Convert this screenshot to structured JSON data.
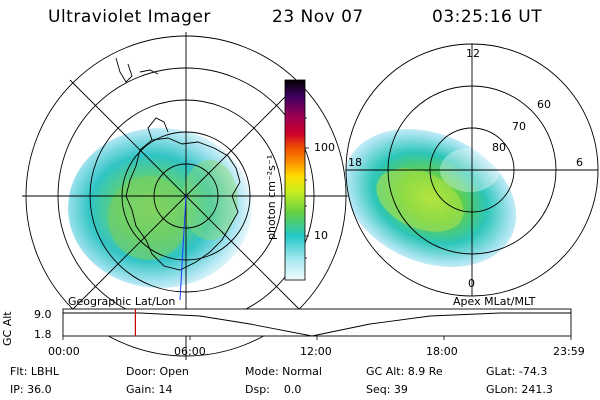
{
  "header": {
    "instrument": "Ultraviolet Imager",
    "date": "23 Nov 07",
    "time": "03:25:16 UT"
  },
  "left_map": {
    "label": "Geographic Lat/Lon"
  },
  "right_map": {
    "label": "Apex MLat/MLT",
    "mlt_labels": [
      "12",
      "18",
      "6",
      "0"
    ],
    "lat_labels": [
      "60",
      "70",
      "80"
    ]
  },
  "colorbar": {
    "unit_label": "photon cm⁻²s⁻¹",
    "ticks": [
      "100",
      "10"
    ],
    "colors": [
      "#000000",
      "#3c0060",
      "#9a0055",
      "#d0002a",
      "#f05000",
      "#ff9900",
      "#ffdd00",
      "#c8ee20",
      "#66d040",
      "#22c8c8",
      "#a8e8f0",
      "#e8f8fc"
    ]
  },
  "altitude_plot": {
    "ylabel": "GC Alt",
    "yticks": [
      "9.0",
      "1.8"
    ],
    "xticks": [
      "00:00",
      "06:00",
      "12:00",
      "18:00",
      "23:59"
    ],
    "marker_color": "#cc0000",
    "marker_time_hours": 3.42
  },
  "info": {
    "filter": "Flt: LBHL",
    "ip": "IP: 36.0",
    "door": "Door: Open",
    "gain": "Gain: 14",
    "mode": "Mode: Normal",
    "dsp": "Dsp:    0.0",
    "gc_alt": "GC Alt: 8.9 Re",
    "seq": "Seq: 39",
    "glat": "GLat: -74.3",
    "glon": "GLon: 241.3"
  }
}
